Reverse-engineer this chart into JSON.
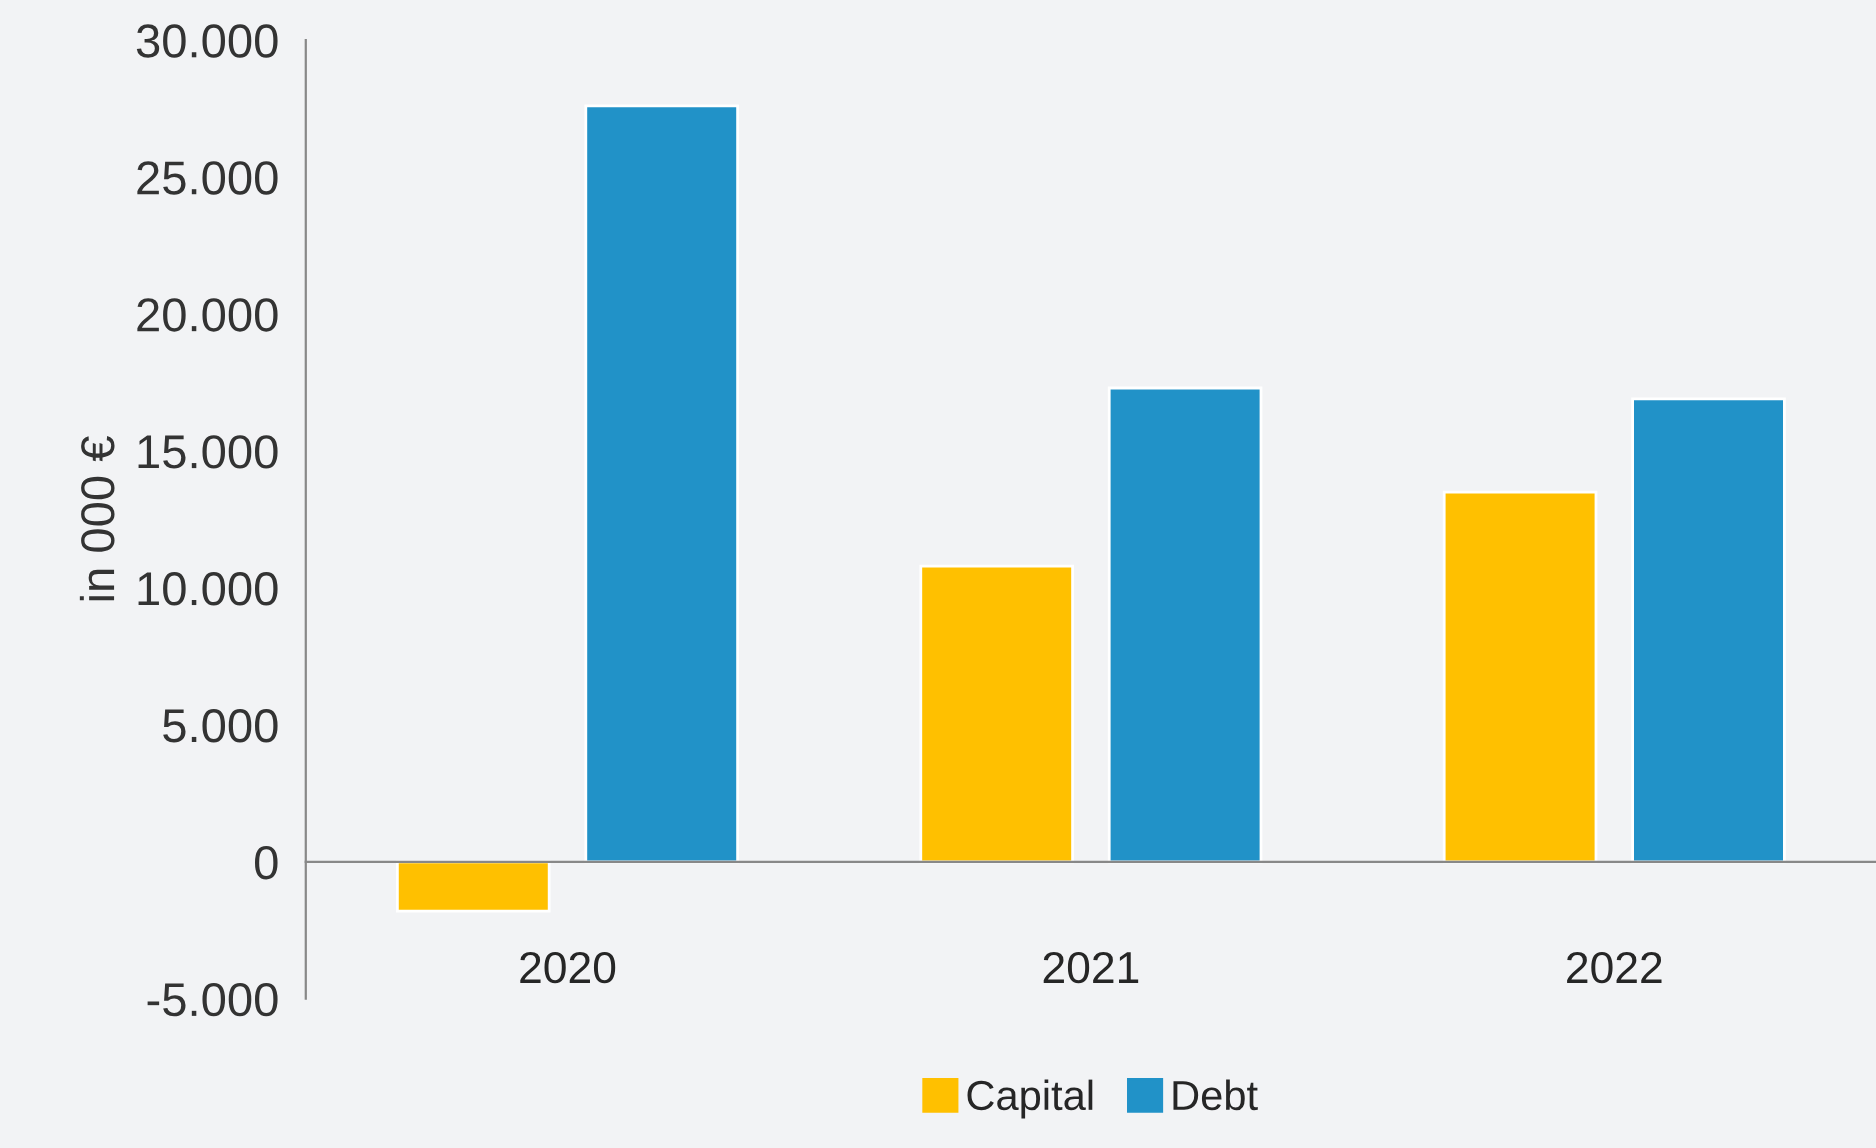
{
  "chart_data": {
    "type": "bar",
    "ylabel": "in 000 €",
    "categories": [
      "2020",
      "2021",
      "2022"
    ],
    "series": [
      {
        "name": "Capital",
        "color": "#ffc000",
        "values": [
          -1800,
          10800,
          13500
        ]
      },
      {
        "name": "Debt",
        "color": "#2192c8",
        "values": [
          27600,
          17300,
          16900
        ]
      }
    ],
    "ylim": [
      -5000,
      30000
    ],
    "yticks": [
      {
        "value": -5000,
        "label": "-5.000"
      },
      {
        "value": 0,
        "label": "0"
      },
      {
        "value": 5000,
        "label": "5.000"
      },
      {
        "value": 10000,
        "label": "10.000"
      },
      {
        "value": 15000,
        "label": "15.000"
      },
      {
        "value": 20000,
        "label": "20.000"
      },
      {
        "value": 25000,
        "label": "25.000"
      },
      {
        "value": 30000,
        "label": "30.000"
      }
    ],
    "grid": false,
    "legend": "bottom"
  }
}
